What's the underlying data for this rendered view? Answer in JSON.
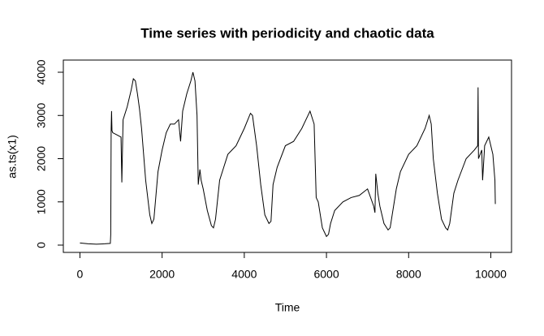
{
  "chart_data": {
    "type": "line",
    "title": "Time series with periodicity and chaotic data",
    "x_label": "Time",
    "y_label": "as.ts(x1)",
    "x": [
      0,
      200,
      400,
      600,
      740,
      750,
      760,
      770,
      780,
      800,
      900,
      1000,
      1020,
      1050,
      1150,
      1250,
      1300,
      1350,
      1400,
      1450,
      1500,
      1600,
      1700,
      1750,
      1800,
      1900,
      2000,
      2100,
      2200,
      2300,
      2400,
      2450,
      2500,
      2600,
      2700,
      2750,
      2800,
      2850,
      2880,
      2920,
      2950,
      3000,
      3100,
      3200,
      3250,
      3300,
      3400,
      3500,
      3600,
      3800,
      4000,
      4150,
      4200,
      4300,
      4400,
      4500,
      4600,
      4650,
      4700,
      4800,
      5000,
      5200,
      5400,
      5500,
      5600,
      5700,
      5750,
      5800,
      5900,
      6000,
      6050,
      6100,
      6200,
      6400,
      6600,
      6800,
      7000,
      7150,
      7180,
      7200,
      7250,
      7300,
      7400,
      7500,
      7550,
      7600,
      7700,
      7800,
      8000,
      8200,
      8400,
      8500,
      8550,
      8600,
      8700,
      8800,
      8900,
      8950,
      9000,
      9100,
      9200,
      9400,
      9600,
      9680,
      9690,
      9700,
      9780,
      9800,
      9850,
      9950,
      10050,
      10100,
      10110
    ],
    "series": [
      {
        "name": "x1",
        "color": "#000000",
        "values": [
          50,
          30,
          20,
          30,
          40,
          250,
          2700,
          3100,
          2650,
          2600,
          2550,
          2500,
          1450,
          2900,
          3200,
          3600,
          3850,
          3800,
          3500,
          3150,
          2700,
          1500,
          700,
          500,
          600,
          1700,
          2200,
          2600,
          2800,
          2800,
          2900,
          2400,
          3100,
          3500,
          3800,
          4000,
          3800,
          3000,
          1400,
          1750,
          1500,
          1300,
          800,
          450,
          400,
          600,
          1500,
          1800,
          2100,
          2300,
          2700,
          3050,
          3000,
          2300,
          1400,
          700,
          500,
          550,
          1400,
          1800,
          2300,
          2400,
          2700,
          2900,
          3100,
          2800,
          1100,
          1000,
          400,
          200,
          250,
          500,
          800,
          1000,
          1100,
          1150,
          1300,
          900,
          750,
          1650,
          1200,
          900,
          500,
          350,
          400,
          700,
          1300,
          1700,
          2100,
          2300,
          2700,
          3000,
          2800,
          2000,
          1200,
          600,
          400,
          350,
          500,
          1200,
          1500,
          2000,
          2200,
          2300,
          3650,
          2000,
          2200,
          1500,
          2300,
          2500,
          2100,
          1500,
          950
        ]
      }
    ],
    "xlim": [
      -404,
      10504
    ],
    "ylim": [
      -169,
      4282
    ],
    "xticks": [
      0,
      2000,
      4000,
      6000,
      8000,
      10000
    ],
    "yticks": [
      0,
      1000,
      2000,
      3000,
      4000
    ]
  }
}
